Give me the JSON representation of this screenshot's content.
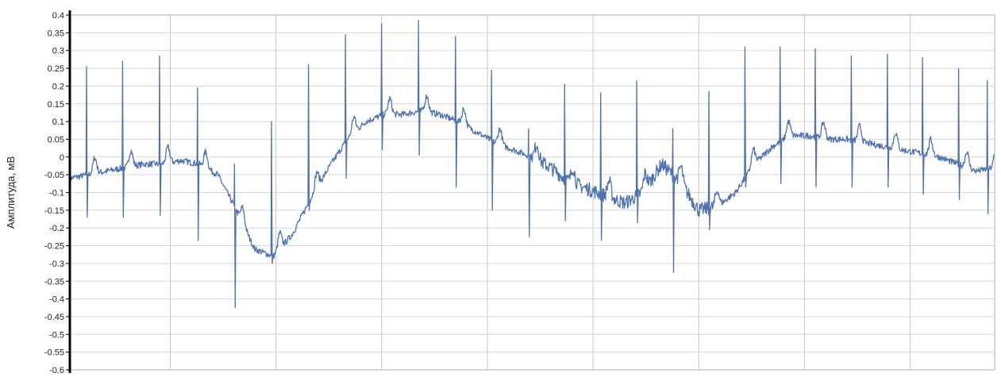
{
  "chart_data": {
    "type": "line",
    "ylabel": "Амплитуда, мВ",
    "ylim": [
      -0.6,
      0.4
    ],
    "y_ticks": [
      "0.4",
      "0.35",
      "0.3",
      "0.25",
      "0.2",
      "0.15",
      "0.1",
      "0.05",
      "0",
      "-0.05",
      "-0.1",
      "-0.15",
      "-0.2",
      "-0.25",
      "-0.3",
      "-0.35",
      "-0.4",
      "-0.45",
      "-0.5",
      "-0.55",
      "-0.6"
    ],
    "xlim": [
      0,
      100
    ],
    "x_major_count": 9,
    "grid": true,
    "baseline": [
      [
        0,
        -0.06
      ],
      [
        2,
        -0.05
      ],
      [
        4,
        -0.04
      ],
      [
        6,
        -0.03
      ],
      [
        8,
        -0.02
      ],
      [
        10,
        -0.02
      ],
      [
        12,
        -0.01
      ],
      [
        14,
        -0.02
      ],
      [
        16,
        -0.05
      ],
      [
        18,
        -0.15
      ],
      [
        20,
        -0.26
      ],
      [
        22,
        -0.28
      ],
      [
        24,
        -0.22
      ],
      [
        26,
        -0.12
      ],
      [
        28,
        -0.03
      ],
      [
        30,
        0.05
      ],
      [
        32,
        0.1
      ],
      [
        34,
        0.12
      ],
      [
        36,
        0.12
      ],
      [
        38,
        0.13
      ],
      [
        40,
        0.12
      ],
      [
        42,
        0.1
      ],
      [
        44,
        0.07
      ],
      [
        46,
        0.04
      ],
      [
        48,
        0.02
      ],
      [
        50,
        0.0
      ],
      [
        52,
        -0.03
      ],
      [
        54,
        -0.07
      ],
      [
        56,
        -0.09
      ],
      [
        58,
        -0.11
      ],
      [
        60,
        -0.13
      ],
      [
        62,
        -0.1
      ],
      [
        64,
        -0.02
      ],
      [
        66,
        -0.07
      ],
      [
        68,
        -0.15
      ],
      [
        70,
        -0.14
      ],
      [
        72,
        -0.1
      ],
      [
        74,
        -0.02
      ],
      [
        76,
        0.03
      ],
      [
        78,
        0.06
      ],
      [
        80,
        0.06
      ],
      [
        82,
        0.05
      ],
      [
        84,
        0.05
      ],
      [
        86,
        0.04
      ],
      [
        88,
        0.03
      ],
      [
        90,
        0.02
      ],
      [
        92,
        0.01
      ],
      [
        94,
        0.0
      ],
      [
        96,
        -0.02
      ],
      [
        98,
        -0.04
      ],
      [
        100,
        -0.03
      ]
    ],
    "beats": [
      {
        "x": 1.8,
        "r": 0.255,
        "s": -0.17
      },
      {
        "x": 5.7,
        "r": 0.27,
        "s": -0.17
      },
      {
        "x": 9.7,
        "r": 0.285,
        "s": -0.165
      },
      {
        "x": 13.8,
        "r": 0.195,
        "s": -0.235
      },
      {
        "x": 17.8,
        "r": -0.02,
        "s": -0.425
      },
      {
        "x": 21.8,
        "r": 0.1,
        "s": -0.3
      },
      {
        "x": 25.8,
        "r": 0.26,
        "s": -0.15
      },
      {
        "x": 29.8,
        "r": 0.345,
        "s": -0.06
      },
      {
        "x": 33.7,
        "r": 0.375,
        "s": 0.02
      },
      {
        "x": 37.7,
        "r": 0.385,
        "s": 0.005
      },
      {
        "x": 41.7,
        "r": 0.34,
        "s": -0.085
      },
      {
        "x": 45.6,
        "r": 0.245,
        "s": -0.15
      },
      {
        "x": 49.6,
        "r": 0.08,
        "s": -0.225
      },
      {
        "x": 53.5,
        "r": 0.205,
        "s": -0.18
      },
      {
        "x": 57.4,
        "r": 0.18,
        "s": -0.235
      },
      {
        "x": 61.3,
        "r": 0.215,
        "s": -0.185
      },
      {
        "x": 65.2,
        "r": 0.08,
        "s": -0.325
      },
      {
        "x": 69.1,
        "r": 0.185,
        "s": -0.205
      },
      {
        "x": 73.0,
        "r": 0.31,
        "s": -0.085
      },
      {
        "x": 76.8,
        "r": 0.31,
        "s": -0.075
      },
      {
        "x": 80.6,
        "r": 0.305,
        "s": -0.085
      },
      {
        "x": 84.5,
        "r": 0.285,
        "s": -0.085
      },
      {
        "x": 88.4,
        "r": 0.29,
        "s": -0.085
      },
      {
        "x": 92.2,
        "r": 0.28,
        "s": -0.105
      },
      {
        "x": 96.1,
        "r": 0.25,
        "s": -0.12
      },
      {
        "x": 99.2,
        "r": 0.215,
        "s": -0.16
      }
    ],
    "line_color": "#4f72b1"
  }
}
